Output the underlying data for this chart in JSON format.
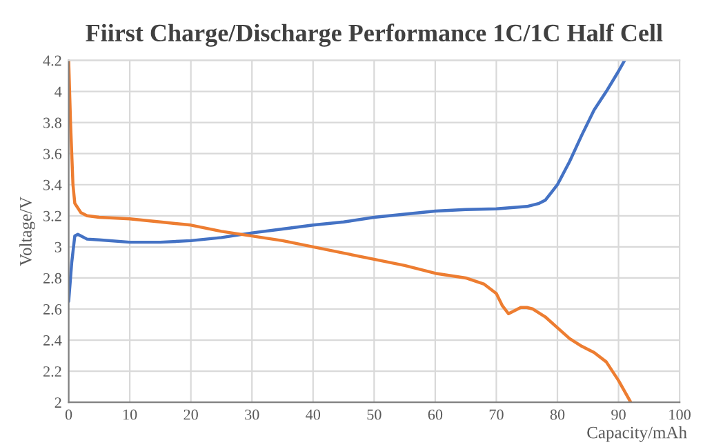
{
  "chart_data": {
    "type": "line",
    "title": "Fiirst Charge/Discharge Performance 1C/1C Half Cell",
    "xlabel": "Capacity/mAh",
    "ylabel": "Voltage/V",
    "series": [
      {
        "color": "#4472c4",
        "x": [
          0,
          0.5,
          1,
          1.5,
          2,
          3,
          5,
          10,
          15,
          20,
          25,
          30,
          35,
          40,
          45,
          50,
          55,
          60,
          65,
          70,
          75,
          77,
          78,
          79,
          80,
          82,
          84,
          86,
          88,
          90,
          91
        ],
        "values": [
          2.65,
          2.9,
          3.07,
          3.08,
          3.07,
          3.05,
          3.045,
          3.03,
          3.03,
          3.04,
          3.06,
          3.09,
          3.115,
          3.14,
          3.16,
          3.19,
          3.21,
          3.23,
          3.24,
          3.245,
          3.26,
          3.28,
          3.3,
          3.35,
          3.4,
          3.55,
          3.72,
          3.88,
          4.0,
          4.13,
          4.2
        ]
      },
      {
        "color": "#ed7d31",
        "x": [
          0,
          0.3,
          0.7,
          1,
          2,
          3,
          5,
          10,
          15,
          20,
          25,
          30,
          35,
          40,
          45,
          50,
          55,
          60,
          65,
          68,
          70,
          71,
          72,
          73,
          74,
          75,
          76,
          78,
          80,
          82,
          84,
          86,
          88,
          90,
          92
        ],
        "values": [
          4.2,
          3.8,
          3.4,
          3.28,
          3.22,
          3.2,
          3.19,
          3.18,
          3.16,
          3.14,
          3.1,
          3.07,
          3.04,
          3.0,
          2.96,
          2.92,
          2.88,
          2.83,
          2.8,
          2.76,
          2.7,
          2.62,
          2.57,
          2.59,
          2.61,
          2.61,
          2.6,
          2.55,
          2.48,
          2.41,
          2.36,
          2.32,
          2.26,
          2.14,
          2.0
        ]
      }
    ],
    "xlim": [
      0,
      100
    ],
    "xticks": [
      0,
      10,
      20,
      30,
      40,
      50,
      60,
      70,
      80,
      90,
      100
    ],
    "ylim": [
      2,
      4.2
    ],
    "yticks": [
      2,
      {
        "value": 2.2,
        "label": "2.2"
      },
      {
        "value": 2.4,
        "label": "2.4"
      },
      {
        "value": 2.6,
        "label": "2.6"
      },
      {
        "value": 2.8,
        "label": "2.8"
      },
      3,
      {
        "value": 3.2,
        "label": "3.2"
      },
      {
        "value": 3.4,
        "label": "3.4"
      },
      {
        "value": 3.6,
        "label": "3.6"
      },
      {
        "value": 3.8,
        "label": "3.8"
      },
      4,
      {
        "value": 4.2,
        "label": "4.2"
      }
    ],
    "grid": true,
    "line_style": "solid"
  }
}
